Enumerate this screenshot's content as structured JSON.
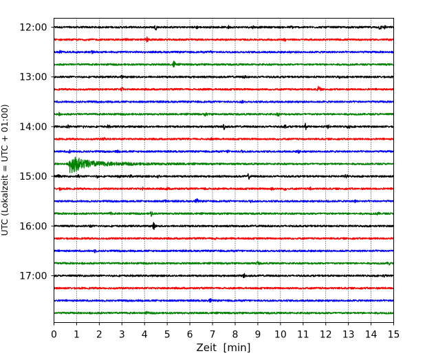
{
  "chart_data": {
    "type": "line",
    "title": "",
    "xlabel": "Zeit  [min]",
    "ylabel": "UTC (Lokalzeit = UTC + 01:00)",
    "xlim": [
      0,
      15
    ],
    "x_ticks": [
      "0",
      "1",
      "2",
      "3",
      "4",
      "5",
      "6",
      "7",
      "8",
      "9",
      "10",
      "11",
      "12",
      "13",
      "14",
      "15"
    ],
    "y_tick_labels": [
      "12:00",
      "13:00",
      "14:00",
      "15:00",
      "16:00",
      "17:00"
    ],
    "grid": "vertical-dotted",
    "trace_colors": [
      "#000000",
      "#ff0000",
      "#0000ff",
      "#008000"
    ],
    "series": [
      {
        "start_utc": "12:00",
        "color": "#000000",
        "events": [
          [
            4.5,
            0.45
          ],
          [
            6.3,
            0.2
          ],
          [
            7.7,
            0.25
          ],
          [
            8.8,
            0.2
          ],
          [
            10.5,
            0.2
          ],
          [
            14.4,
            0.45
          ],
          [
            14.6,
            0.3
          ]
        ]
      },
      {
        "start_utc": "12:15",
        "color": "#ff0000",
        "events": [
          [
            3.2,
            0.25
          ],
          [
            4.1,
            0.55
          ],
          [
            5.9,
            0.2
          ],
          [
            10.2,
            0.2
          ]
        ]
      },
      {
        "start_utc": "12:30",
        "color": "#0000ff",
        "events": [
          [
            0.3,
            0.3
          ],
          [
            1.7,
            0.2
          ],
          [
            6.9,
            0.2
          ]
        ]
      },
      {
        "start_utc": "12:45",
        "color": "#008000",
        "events": [
          [
            5.3,
            0.7
          ]
        ]
      },
      {
        "start_utc": "13:00",
        "color": "#000000",
        "events": [
          [
            3.0,
            0.2
          ],
          [
            8.4,
            0.2
          ],
          [
            12.6,
            0.2
          ]
        ]
      },
      {
        "start_utc": "13:15",
        "color": "#ff0000",
        "events": [
          [
            3.0,
            0.3
          ],
          [
            6.7,
            0.2
          ],
          [
            11.7,
            0.6
          ]
        ]
      },
      {
        "start_utc": "13:30",
        "color": "#0000ff",
        "events": [
          [
            8.3,
            0.2
          ]
        ]
      },
      {
        "start_utc": "13:45",
        "color": "#008000",
        "events": [
          [
            0.2,
            0.25
          ],
          [
            6.7,
            0.3
          ],
          [
            9.9,
            0.3
          ]
        ]
      },
      {
        "start_utc": "14:00",
        "color": "#000000",
        "events": [
          [
            0.6,
            0.3
          ],
          [
            1.3,
            0.2
          ],
          [
            2.4,
            0.25
          ],
          [
            7.5,
            0.55
          ],
          [
            10.2,
            0.3
          ],
          [
            11.1,
            0.6
          ],
          [
            12.1,
            0.3
          ],
          [
            13.0,
            0.35
          ]
        ]
      },
      {
        "start_utc": "14:15",
        "color": "#ff0000",
        "events": [
          [
            2.2,
            0.2
          ],
          [
            7.0,
            0.2
          ]
        ]
      },
      {
        "start_utc": "14:30",
        "color": "#0000ff",
        "events": [
          [
            0.7,
            0.25
          ],
          [
            2.8,
            0.2
          ],
          [
            7.7,
            0.25
          ],
          [
            8.3,
            0.2
          ],
          [
            10.8,
            0.25
          ]
        ]
      },
      {
        "start_utc": "14:45",
        "color": "#008000",
        "events": [
          [
            0.7,
            1.8,
            "quake"
          ]
        ]
      },
      {
        "start_utc": "15:00",
        "color": "#000000",
        "events": [
          [
            0.2,
            0.25
          ],
          [
            1.1,
            0.25
          ],
          [
            1.9,
            0.2
          ],
          [
            2.9,
            0.2
          ],
          [
            3.4,
            0.2
          ],
          [
            4.6,
            0.3
          ],
          [
            8.6,
            0.5
          ],
          [
            12.9,
            0.3
          ]
        ]
      },
      {
        "start_utc": "15:15",
        "color": "#ff0000",
        "events": [
          [
            0.3,
            0.3
          ],
          [
            3.9,
            0.2
          ],
          [
            5.0,
            0.2
          ],
          [
            6.7,
            0.2
          ],
          [
            9.6,
            0.4
          ],
          [
            10.2,
            0.2
          ],
          [
            11.3,
            0.25
          ]
        ]
      },
      {
        "start_utc": "15:30",
        "color": "#0000ff",
        "events": [
          [
            4.9,
            0.2
          ],
          [
            6.3,
            0.45
          ],
          [
            8.7,
            0.2
          ],
          [
            12.1,
            0.2
          ],
          [
            13.3,
            0.2
          ]
        ]
      },
      {
        "start_utc": "15:45",
        "color": "#008000",
        "events": [
          [
            4.3,
            0.5
          ],
          [
            2.5,
            0.2
          ],
          [
            14.3,
            0.2
          ]
        ]
      },
      {
        "start_utc": "16:00",
        "color": "#000000",
        "events": [
          [
            4.4,
            0.65
          ],
          [
            1.6,
            0.2
          ]
        ]
      },
      {
        "start_utc": "16:15",
        "color": "#ff0000",
        "events": [
          [
            7.1,
            0.2
          ]
        ]
      },
      {
        "start_utc": "16:30",
        "color": "#0000ff",
        "events": [
          [
            1.8,
            0.25
          ]
        ]
      },
      {
        "start_utc": "16:45",
        "color": "#008000",
        "events": [
          [
            9.0,
            0.35
          ],
          [
            14.8,
            0.3
          ]
        ]
      },
      {
        "start_utc": "17:00",
        "color": "#000000",
        "events": [
          [
            8.4,
            0.4
          ],
          [
            14.6,
            0.2
          ]
        ]
      },
      {
        "start_utc": "17:15",
        "color": "#ff0000",
        "events": []
      },
      {
        "start_utc": "17:30",
        "color": "#0000ff",
        "events": [
          [
            6.9,
            0.35
          ]
        ]
      },
      {
        "start_utc": "17:45",
        "color": "#008000",
        "events": [
          [
            4.1,
            0.2
          ]
        ]
      }
    ]
  }
}
